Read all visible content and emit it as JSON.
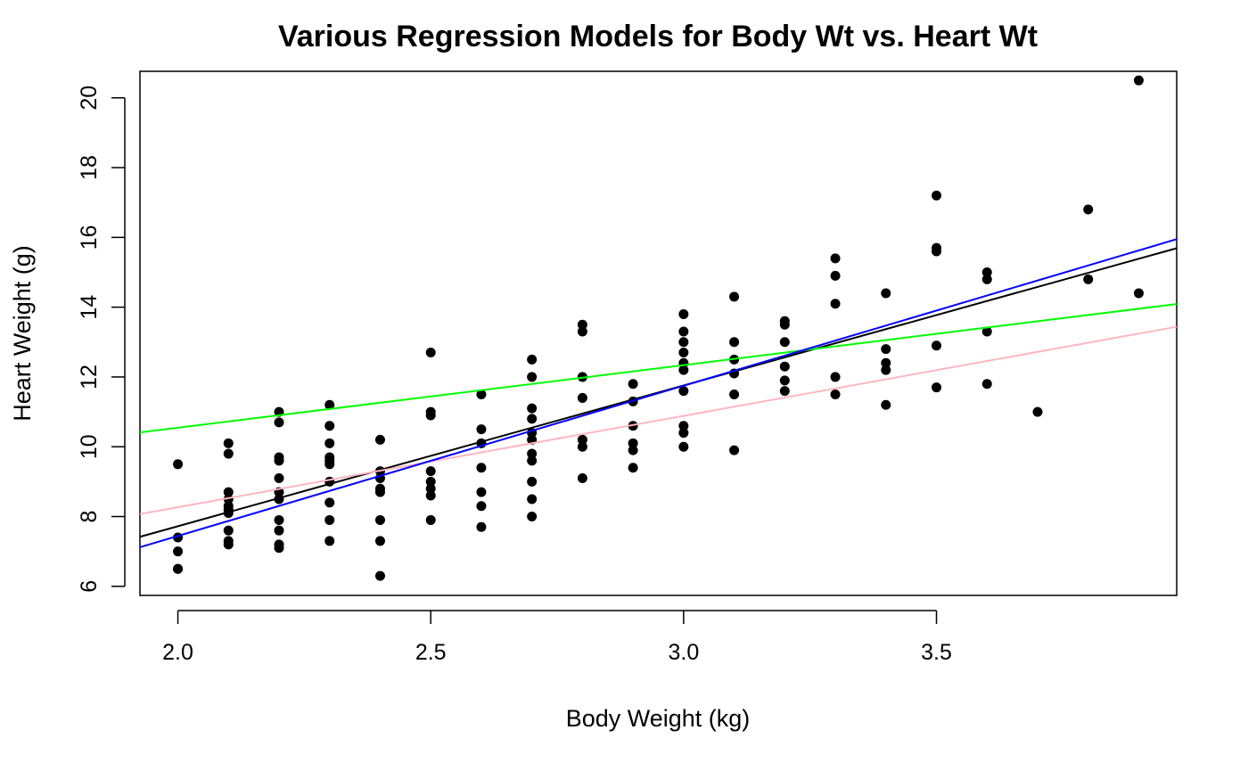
{
  "chart_data": {
    "type": "scatter",
    "title": "Various Regression Models for Body Wt vs. Heart Wt",
    "xlabel": "Body Weight (kg)",
    "ylabel": "Heart Weight (g)",
    "xlim": [
      1.925,
      3.975
    ],
    "ylim": [
      5.74,
      20.76
    ],
    "xticks": [
      2.0,
      2.5,
      3.0,
      3.5
    ],
    "xtick_labels": [
      "2.0",
      "2.5",
      "3.0",
      "3.5"
    ],
    "yticks": [
      6,
      8,
      10,
      12,
      14,
      16,
      18,
      20
    ],
    "ytick_labels": [
      "6",
      "8",
      "10",
      "12",
      "14",
      "16",
      "18",
      "20"
    ],
    "grid": false,
    "legend": "none",
    "points": [
      [
        2.0,
        9.5
      ],
      [
        2.0,
        7.4
      ],
      [
        2.0,
        7.0
      ],
      [
        2.0,
        6.5
      ],
      [
        2.0,
        6.5
      ],
      [
        2.1,
        10.1
      ],
      [
        2.1,
        9.8
      ],
      [
        2.1,
        8.7
      ],
      [
        2.1,
        8.5
      ],
      [
        2.1,
        8.3
      ],
      [
        2.1,
        8.2
      ],
      [
        2.1,
        8.1
      ],
      [
        2.1,
        7.6
      ],
      [
        2.1,
        7.3
      ],
      [
        2.1,
        7.2
      ],
      [
        2.2,
        11.0
      ],
      [
        2.2,
        10.7
      ],
      [
        2.2,
        9.7
      ],
      [
        2.2,
        9.6
      ],
      [
        2.2,
        9.1
      ],
      [
        2.2,
        8.7
      ],
      [
        2.2,
        8.5
      ],
      [
        2.2,
        7.9
      ],
      [
        2.2,
        7.6
      ],
      [
        2.2,
        7.2
      ],
      [
        2.2,
        7.1
      ],
      [
        2.3,
        11.2
      ],
      [
        2.3,
        10.6
      ],
      [
        2.3,
        10.1
      ],
      [
        2.3,
        9.7
      ],
      [
        2.3,
        9.6
      ],
      [
        2.3,
        9.5
      ],
      [
        2.3,
        9.0
      ],
      [
        2.3,
        8.4
      ],
      [
        2.3,
        7.9
      ],
      [
        2.3,
        7.3
      ],
      [
        2.4,
        10.2
      ],
      [
        2.4,
        9.3
      ],
      [
        2.4,
        9.1
      ],
      [
        2.4,
        8.8
      ],
      [
        2.4,
        8.7
      ],
      [
        2.4,
        7.9
      ],
      [
        2.4,
        7.3
      ],
      [
        2.4,
        6.3
      ],
      [
        2.5,
        12.7
      ],
      [
        2.5,
        11.0
      ],
      [
        2.5,
        10.9
      ],
      [
        2.5,
        9.3
      ],
      [
        2.5,
        9.0
      ],
      [
        2.5,
        8.8
      ],
      [
        2.5,
        8.6
      ],
      [
        2.5,
        7.9
      ],
      [
        2.6,
        11.5
      ],
      [
        2.6,
        10.5
      ],
      [
        2.6,
        10.1
      ],
      [
        2.6,
        9.4
      ],
      [
        2.6,
        8.7
      ],
      [
        2.6,
        8.3
      ],
      [
        2.6,
        7.7
      ],
      [
        2.7,
        12.5
      ],
      [
        2.7,
        12.0
      ],
      [
        2.7,
        11.1
      ],
      [
        2.7,
        10.8
      ],
      [
        2.7,
        10.4
      ],
      [
        2.7,
        10.2
      ],
      [
        2.7,
        9.8
      ],
      [
        2.7,
        9.6
      ],
      [
        2.7,
        9.0
      ],
      [
        2.7,
        8.5
      ],
      [
        2.7,
        8.0
      ],
      [
        2.8,
        13.5
      ],
      [
        2.8,
        13.3
      ],
      [
        2.8,
        12.0
      ],
      [
        2.8,
        11.4
      ],
      [
        2.8,
        10.2
      ],
      [
        2.8,
        10.0
      ],
      [
        2.8,
        9.1
      ],
      [
        2.9,
        11.8
      ],
      [
        2.9,
        11.3
      ],
      [
        2.9,
        10.6
      ],
      [
        2.9,
        10.1
      ],
      [
        2.9,
        9.9
      ],
      [
        2.9,
        9.4
      ],
      [
        3.0,
        13.8
      ],
      [
        3.0,
        13.3
      ],
      [
        3.0,
        13.0
      ],
      [
        3.0,
        12.7
      ],
      [
        3.0,
        12.4
      ],
      [
        3.0,
        12.2
      ],
      [
        3.0,
        11.6
      ],
      [
        3.0,
        10.6
      ],
      [
        3.0,
        10.4
      ],
      [
        3.0,
        10.0
      ],
      [
        3.1,
        14.3
      ],
      [
        3.1,
        13.0
      ],
      [
        3.1,
        12.5
      ],
      [
        3.1,
        12.1
      ],
      [
        3.1,
        11.5
      ],
      [
        3.1,
        9.9
      ],
      [
        3.2,
        13.6
      ],
      [
        3.2,
        13.5
      ],
      [
        3.2,
        13.0
      ],
      [
        3.2,
        12.3
      ],
      [
        3.2,
        11.9
      ],
      [
        3.2,
        11.6
      ],
      [
        3.3,
        15.4
      ],
      [
        3.3,
        14.9
      ],
      [
        3.3,
        14.1
      ],
      [
        3.3,
        12.0
      ],
      [
        3.3,
        11.5
      ],
      [
        3.4,
        14.4
      ],
      [
        3.4,
        12.8
      ],
      [
        3.4,
        12.4
      ],
      [
        3.4,
        12.2
      ],
      [
        3.4,
        11.2
      ],
      [
        3.5,
        17.2
      ],
      [
        3.5,
        15.7
      ],
      [
        3.5,
        15.6
      ],
      [
        3.5,
        12.9
      ],
      [
        3.5,
        11.7
      ],
      [
        3.6,
        15.0
      ],
      [
        3.6,
        14.8
      ],
      [
        3.6,
        13.3
      ],
      [
        3.6,
        11.8
      ],
      [
        3.7,
        11.0
      ],
      [
        3.8,
        16.8
      ],
      [
        3.8,
        14.8
      ],
      [
        3.9,
        20.5
      ],
      [
        3.9,
        14.4
      ]
    ],
    "lines": [
      {
        "color": "#000000",
        "x": [
          1.925,
          3.975
        ],
        "y": [
          7.42,
          15.69
        ]
      },
      {
        "color": "#00ff00",
        "x": [
          1.925,
          3.975
        ],
        "y": [
          10.41,
          14.09
        ]
      },
      {
        "color": "#ffb6c1",
        "x": [
          1.925,
          3.975
        ],
        "y": [
          8.07,
          13.44
        ]
      },
      {
        "color": "#0000ff",
        "x": [
          1.925,
          3.975
        ],
        "y": [
          7.12,
          15.95
        ]
      }
    ]
  }
}
